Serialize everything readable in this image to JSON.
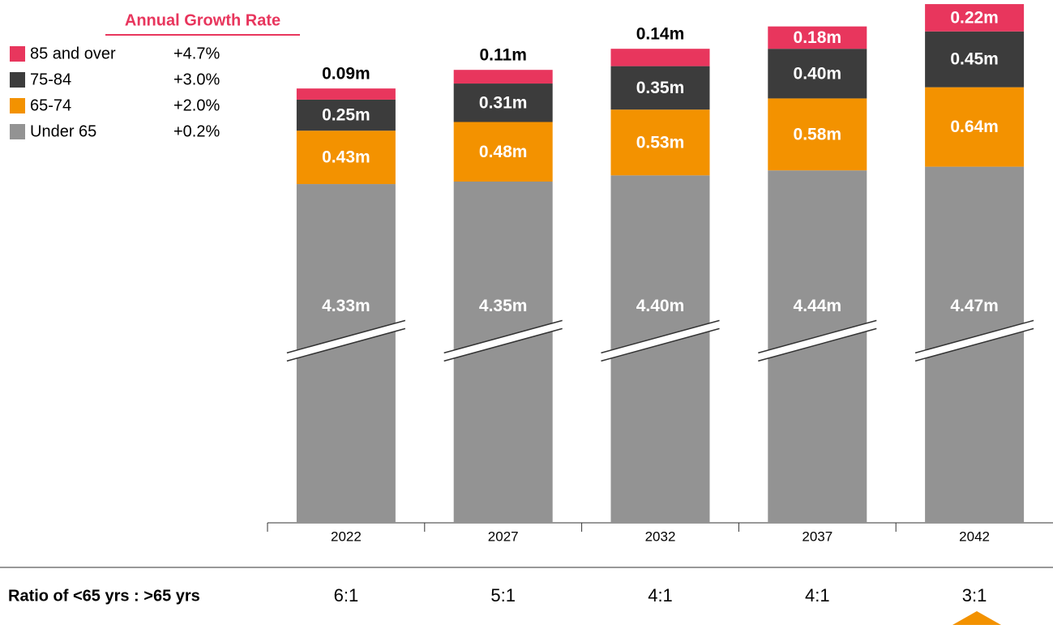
{
  "chart_data": {
    "type": "stacked_bar",
    "legend_title": "Annual Growth Rate",
    "categories": [
      "2022",
      "2027",
      "2032",
      "2037",
      "2042"
    ],
    "series": [
      {
        "name": "Under 65",
        "growth": "+0.2%",
        "color": "#939393",
        "values": [
          4.33,
          4.35,
          4.4,
          4.44,
          4.47
        ],
        "value_labels": [
          "4.33m",
          "4.35m",
          "4.40m",
          "4.44m",
          "4.47m"
        ]
      },
      {
        "name": "65-74",
        "growth": "+2.0%",
        "color": "#f39200",
        "values": [
          0.43,
          0.48,
          0.53,
          0.58,
          0.64
        ],
        "value_labels": [
          "0.43m",
          "0.48m",
          "0.53m",
          "0.58m",
          "0.64m"
        ]
      },
      {
        "name": "75-84",
        "growth": "+3.0%",
        "color": "#3c3c3c",
        "values": [
          0.25,
          0.31,
          0.35,
          0.4,
          0.45
        ],
        "value_labels": [
          "0.25m",
          "0.31m",
          "0.35m",
          "0.40m",
          "0.45m"
        ]
      },
      {
        "name": "85 and over",
        "growth": "+4.7%",
        "color": "#e8365d",
        "values": [
          0.09,
          0.11,
          0.14,
          0.18,
          0.22
        ],
        "value_labels": [
          "0.09m",
          "0.11m",
          "0.14m",
          "0.18m",
          "0.22m"
        ]
      }
    ],
    "ylim": [
      0,
      5.8
    ],
    "y_break": [
      1.5,
      3.1
    ],
    "ratio_title": "Ratio of <65 yrs : >65 yrs",
    "ratios": [
      "6:1",
      "5:1",
      "4:1",
      "4:1",
      "3:1"
    ]
  }
}
